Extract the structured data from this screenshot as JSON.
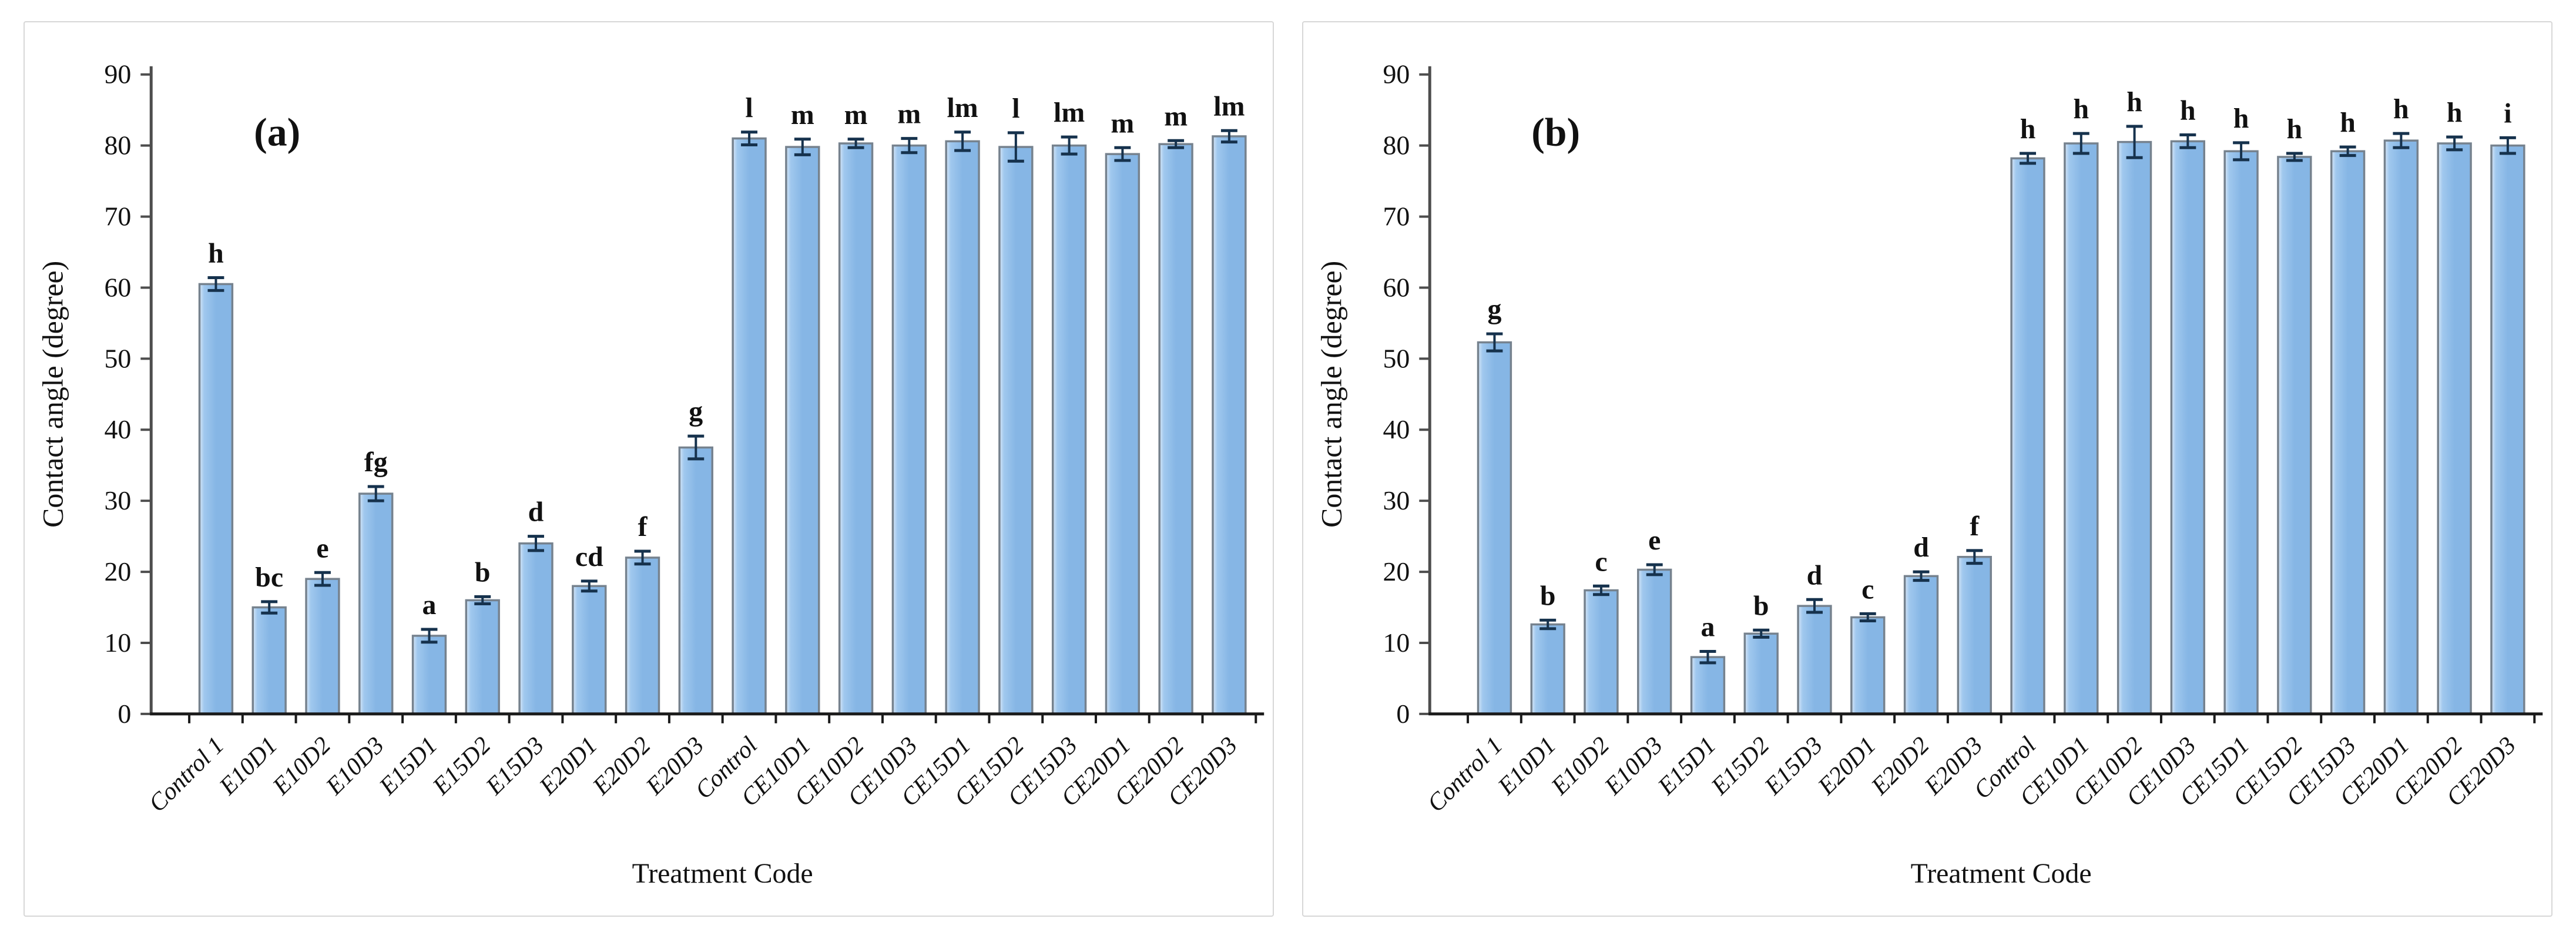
{
  "figure": {
    "background": "#ffffff",
    "panel_border_color": "#d7d7d7",
    "bar_fill_light": "#d6e6f7",
    "bar_fill_mid": "#a0c8ee",
    "bar_fill_dark": "#86b6e5",
    "bar_border_color": "#76828e",
    "error_bar_color": "#16324d",
    "axis_line_color": "#4d4d4d",
    "baseline_color": "#1a1a1a",
    "text_color": "#111111"
  },
  "chart_data": [
    {
      "type": "bar",
      "panel_label": "(a)",
      "ylabel": "Contact angle (degree)",
      "xlabel": "Treatment Code",
      "ylim": [
        0,
        90
      ],
      "ytick_step": 10,
      "yticks": [
        0,
        10,
        20,
        30,
        40,
        50,
        60,
        70,
        80,
        90
      ],
      "grid": false,
      "legend": "none",
      "categories": [
        "Control 1",
        "E10D1",
        "E10D2",
        "E10D3",
        "E15D1",
        "E15D2",
        "E15D3",
        "E20D1",
        "E20D2",
        "E20D3",
        "Control",
        "CE10D1",
        "CE10D2",
        "CE10D3",
        "CE15D1",
        "CE15D2",
        "CE15D3",
        "CE20D1",
        "CE20D2",
        "CE20D3"
      ],
      "values": [
        60.5,
        15.0,
        19.0,
        31.0,
        11.0,
        16.0,
        24.0,
        18.0,
        22.0,
        37.5,
        81.0,
        79.8,
        80.3,
        80.0,
        80.6,
        79.8,
        80.0,
        78.8,
        80.2,
        81.3
      ],
      "errors": [
        0.9,
        0.8,
        0.9,
        1.0,
        0.9,
        0.5,
        1.0,
        0.7,
        0.9,
        1.6,
        0.9,
        1.1,
        0.6,
        1.0,
        1.3,
        2.0,
        1.2,
        0.9,
        0.5,
        0.8
      ],
      "sig_letters": [
        "h",
        "bc",
        "e",
        "fg",
        "a",
        "b",
        "d",
        "cd",
        "f",
        "g",
        "l",
        "m",
        "m",
        "m",
        "lm",
        "l",
        "lm",
        "m",
        "m",
        "lm"
      ]
    },
    {
      "type": "bar",
      "panel_label": "(b)",
      "ylabel": "Contact angle (degree)",
      "xlabel": "Treatment Code",
      "ylim": [
        0,
        90
      ],
      "ytick_step": 10,
      "yticks": [
        0,
        10,
        20,
        30,
        40,
        50,
        60,
        70,
        80,
        90
      ],
      "grid": false,
      "legend": "none",
      "categories": [
        "Control 1",
        "E10D1",
        "E10D2",
        "E10D3",
        "E15D1",
        "E15D2",
        "E15D3",
        "E20D1",
        "E20D2",
        "E20D3",
        "Control",
        "CE10D1",
        "CE10D2",
        "CE10D3",
        "CE15D1",
        "CE15D2",
        "CE15D3",
        "CE20D1",
        "CE20D2",
        "CE20D3"
      ],
      "values": [
        52.3,
        12.6,
        17.4,
        20.3,
        8.0,
        11.3,
        15.2,
        13.6,
        19.4,
        22.1,
        78.2,
        80.3,
        80.5,
        80.6,
        79.2,
        78.4,
        79.2,
        80.7,
        80.3,
        80.0
      ],
      "errors": [
        1.2,
        0.6,
        0.6,
        0.7,
        0.8,
        0.5,
        0.9,
        0.5,
        0.6,
        0.9,
        0.7,
        1.4,
        2.2,
        0.9,
        1.2,
        0.5,
        0.6,
        1.0,
        0.9,
        1.1
      ],
      "sig_letters": [
        "g",
        "b",
        "c",
        "e",
        "a",
        "b",
        "d",
        "c",
        "d",
        "f",
        "h",
        "h",
        "h",
        "h",
        "h",
        "h",
        "h",
        "h",
        "h",
        "i"
      ]
    }
  ]
}
